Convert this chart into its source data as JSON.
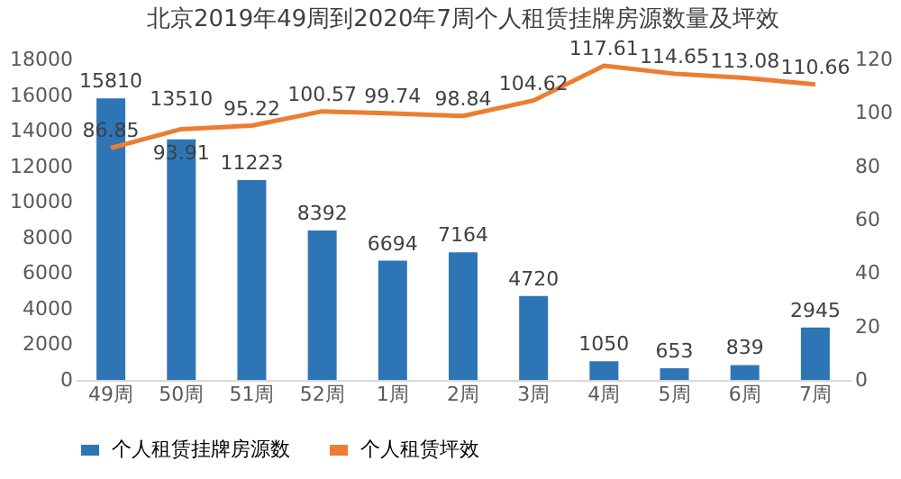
{
  "chart_data": {
    "type": "bar",
    "title": "北京2019年49周到2020年7周个人租赁挂牌房源数量及坪效",
    "categories": [
      "49周",
      "50周",
      "51周",
      "52周",
      "1周",
      "2周",
      "3周",
      "4周",
      "5周",
      "6周",
      "7周"
    ],
    "series": [
      {
        "name": "个人租赁挂牌房源数",
        "color": "#2e75b6",
        "values": [
          15810,
          13510,
          11223,
          8392,
          6694,
          7164,
          4720,
          1050,
          653,
          839,
          2945
        ]
      },
      {
        "name": "个人租赁坪效",
        "type": "line",
        "axis": "y2",
        "color": "#ed7d31",
        "values": [
          86.85,
          93.91,
          95.22,
          100.57,
          99.74,
          98.84,
          104.62,
          117.61,
          114.65,
          113.08,
          110.66
        ]
      }
    ],
    "ylim": [
      0,
      18000
    ],
    "yticks": [
      0,
      2000,
      4000,
      6000,
      8000,
      10000,
      12000,
      14000,
      16000,
      18000
    ],
    "y2lim": [
      0,
      120
    ],
    "y2ticks": [
      0,
      20,
      40,
      60,
      80,
      100,
      120
    ],
    "data_labels": true,
    "legend": "bottom",
    "grid": false,
    "marker": "none"
  }
}
